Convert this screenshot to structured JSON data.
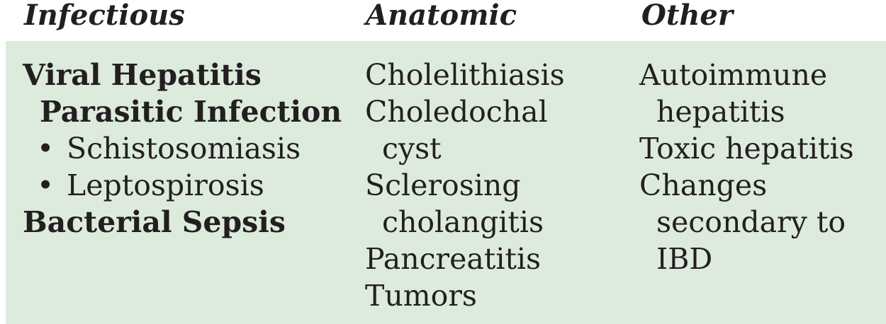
{
  "headers": {
    "infectious": "Infectious",
    "anatomic": "Anatomic",
    "other": "Other"
  },
  "infectious": {
    "viral_hepatitis": "Viral Hepatitis",
    "parasitic_infection": "Parasitic Infection",
    "bullet": "•",
    "schistosomiasis": "Schistosomiasis",
    "leptospirosis": "Leptospirosis",
    "bacterial_sepsis": "Bacterial Sepsis"
  },
  "anatomic": {
    "cholelithiasis": "Cholelithiasis",
    "choledochal_1": "Choledochal",
    "choledochal_2": "cyst",
    "sclerosing_1": "Sclerosing",
    "sclerosing_2": "cholangitis",
    "pancreatitis": "Pancreatitis",
    "tumors": "Tumors"
  },
  "other": {
    "autoimmune_1": "Autoimmune",
    "autoimmune_2": "hepatitis",
    "toxic": "Toxic hepatitis",
    "changes_1": "Changes",
    "changes_2": "secondary to",
    "changes_3": "IBD"
  },
  "colors": {
    "panel_background": "#dcebdc",
    "text": "#231f20"
  }
}
